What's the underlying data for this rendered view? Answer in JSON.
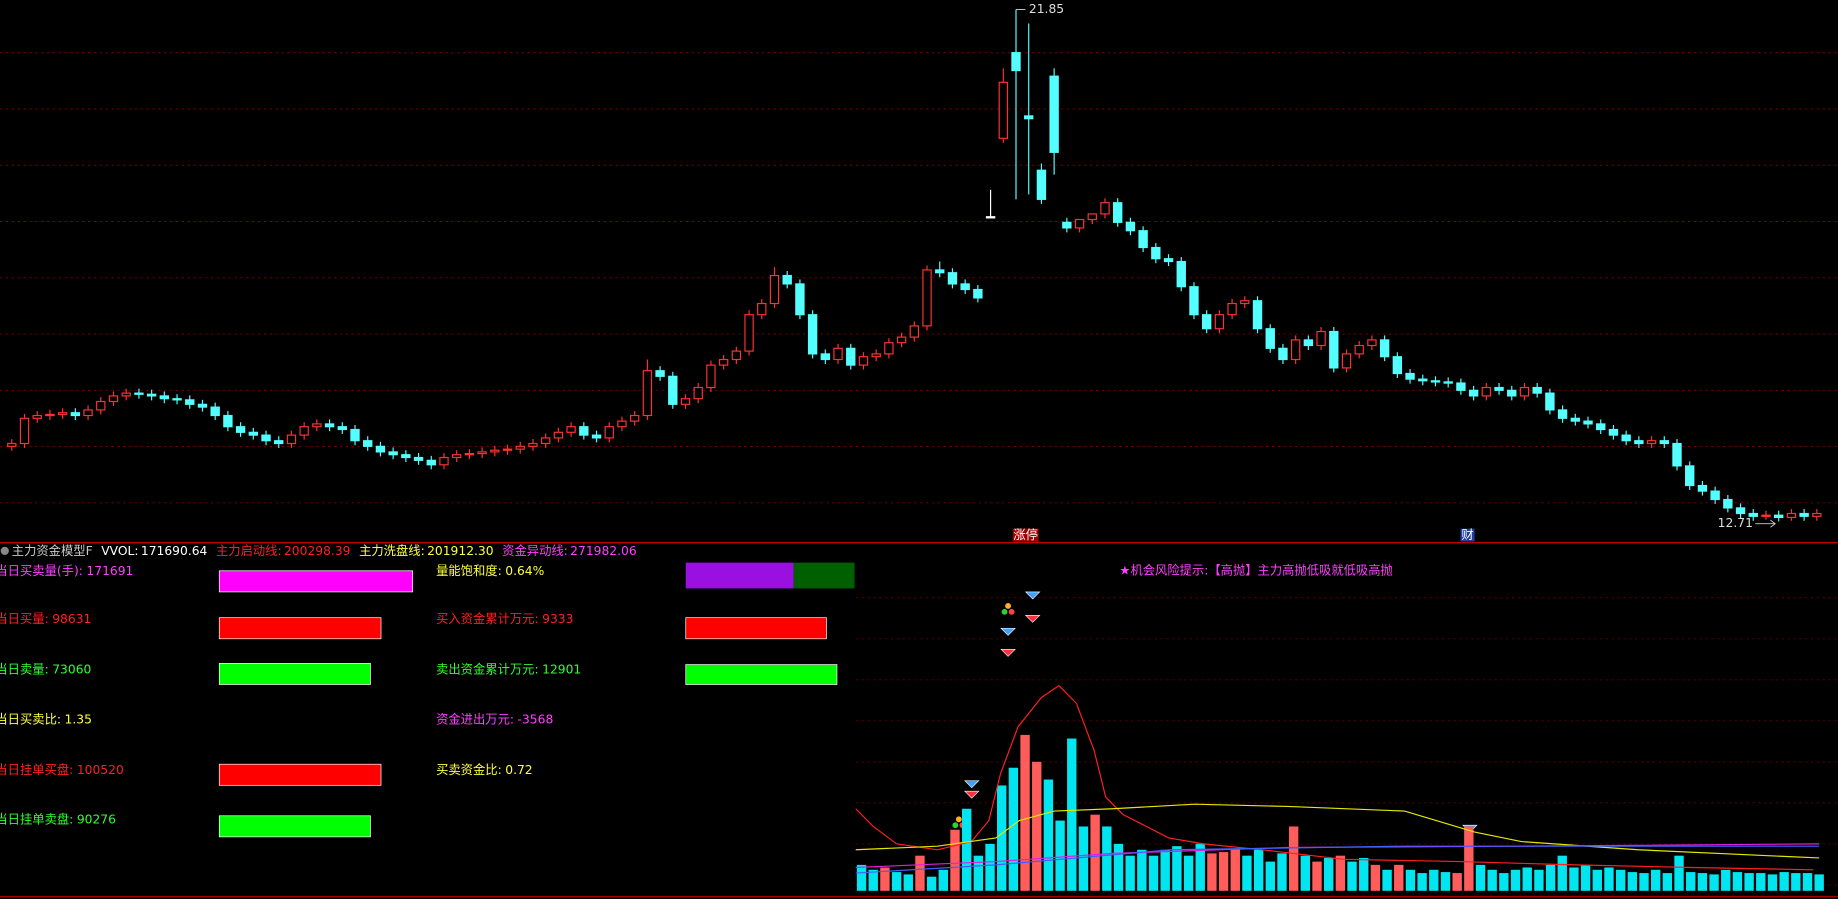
{
  "chart_data": [
    {
      "type": "candlestick",
      "ylim": [
        12.35,
        22.02
      ],
      "grid": true,
      "up_color": "#ff3232",
      "down_color": "#54ffff",
      "doji_color": "#ffffff",
      "open": [
        14.05,
        14.1,
        14.55,
        14.6,
        14.62,
        14.65,
        14.6,
        14.7,
        14.85,
        14.95,
        15.0,
        14.98,
        14.95,
        14.9,
        14.88,
        14.8,
        14.75,
        14.6,
        14.4,
        14.3,
        14.25,
        14.15,
        14.1,
        14.25,
        14.4,
        14.45,
        14.4,
        14.35,
        14.15,
        14.05,
        13.95,
        13.9,
        13.85,
        13.8,
        13.72,
        13.85,
        13.9,
        13.92,
        13.95,
        13.98,
        14.0,
        14.05,
        14.1,
        14.2,
        14.3,
        14.4,
        14.25,
        14.2,
        14.4,
        14.5,
        14.6,
        15.4,
        15.3,
        14.8,
        14.9,
        15.1,
        15.5,
        15.6,
        15.75,
        16.4,
        16.6,
        17.1,
        16.95,
        16.4,
        15.7,
        15.6,
        15.8,
        15.5,
        15.65,
        15.7,
        15.9,
        16.0,
        16.2,
        17.2,
        17.15,
        16.95,
        16.85,
        18.15,
        19.55,
        21.08,
        19.95,
        18.98,
        20.66,
        18.05,
        17.95,
        18.1,
        18.2,
        18.4,
        18.05,
        17.9,
        17.6,
        17.4,
        17.35,
        16.9,
        16.4,
        16.15,
        16.4,
        16.6,
        16.65,
        16.15,
        15.8,
        15.6,
        15.95,
        15.85,
        16.1,
        15.45,
        15.7,
        15.85,
        15.95,
        15.65,
        15.35,
        15.25,
        15.22,
        15.2,
        15.18,
        15.05,
        14.95,
        15.1,
        15.05,
        14.95,
        15.1,
        15.0,
        14.7,
        14.55,
        14.5,
        14.45,
        14.35,
        14.25,
        14.15,
        14.1,
        14.15,
        14.1,
        13.7,
        13.35,
        13.25,
        13.1,
        12.95,
        12.85,
        12.8,
        12.82,
        12.78,
        12.85,
        12.8
      ],
      "high": [
        14.18,
        14.63,
        14.68,
        14.7,
        14.73,
        14.73,
        14.78,
        14.93,
        15.03,
        15.08,
        15.08,
        15.06,
        15.03,
        14.98,
        14.96,
        14.88,
        14.83,
        14.68,
        14.48,
        14.38,
        14.33,
        14.23,
        14.33,
        14.48,
        14.53,
        14.53,
        14.48,
        14.43,
        14.23,
        14.13,
        14.03,
        13.98,
        13.93,
        13.88,
        13.93,
        13.98,
        14.0,
        14.03,
        14.06,
        14.08,
        14.13,
        14.18,
        14.28,
        14.38,
        14.48,
        14.48,
        14.33,
        14.48,
        14.58,
        14.68,
        15.6,
        15.48,
        15.38,
        14.98,
        15.18,
        15.58,
        15.68,
        15.83,
        16.48,
        16.68,
        17.25,
        17.18,
        17.03,
        16.48,
        15.78,
        15.88,
        15.88,
        15.73,
        15.78,
        15.98,
        16.08,
        16.28,
        17.28,
        17.35,
        17.23,
        17.03,
        16.93,
        18.63,
        20.8,
        21.85,
        21.6,
        19.1,
        20.8,
        18.13,
        18.03,
        18.18,
        18.48,
        18.48,
        18.13,
        17.98,
        17.68,
        17.48,
        17.43,
        16.98,
        16.48,
        16.48,
        16.68,
        16.73,
        16.73,
        16.23,
        15.88,
        16.03,
        16.03,
        16.18,
        16.18,
        15.78,
        15.93,
        16.03,
        16.03,
        15.73,
        15.43,
        15.33,
        15.3,
        15.28,
        15.26,
        15.13,
        15.18,
        15.18,
        15.13,
        15.18,
        15.18,
        15.08,
        14.78,
        14.63,
        14.58,
        14.53,
        14.43,
        14.33,
        14.23,
        14.23,
        14.23,
        14.18,
        13.78,
        13.43,
        13.33,
        13.18,
        13.03,
        12.93,
        12.9,
        12.9,
        12.93,
        12.93,
        12.93
      ],
      "low": [
        13.97,
        14.02,
        14.47,
        14.52,
        14.54,
        14.52,
        14.52,
        14.62,
        14.77,
        14.87,
        14.9,
        14.87,
        14.82,
        14.8,
        14.72,
        14.67,
        14.52,
        14.32,
        14.22,
        14.17,
        14.07,
        14.02,
        14.02,
        14.17,
        14.32,
        14.32,
        14.27,
        14.07,
        13.97,
        13.87,
        13.82,
        13.77,
        13.72,
        13.64,
        13.64,
        13.77,
        13.82,
        13.84,
        13.87,
        13.9,
        13.92,
        13.97,
        14.02,
        14.12,
        14.22,
        14.17,
        14.12,
        14.12,
        14.32,
        14.42,
        14.52,
        15.22,
        14.72,
        14.72,
        14.82,
        15.02,
        15.42,
        15.52,
        15.67,
        16.32,
        16.52,
        16.87,
        16.32,
        15.62,
        15.52,
        15.52,
        15.42,
        15.42,
        15.57,
        15.62,
        15.82,
        15.92,
        16.12,
        17.07,
        16.87,
        16.77,
        16.62,
        18.15,
        19.47,
        18.46,
        18.55,
        18.38,
        18.9,
        17.87,
        17.87,
        18.02,
        18.12,
        17.97,
        17.82,
        17.52,
        17.32,
        17.27,
        16.82,
        16.32,
        16.07,
        16.07,
        16.32,
        16.52,
        16.07,
        15.72,
        15.52,
        15.52,
        15.77,
        15.77,
        15.37,
        15.37,
        15.62,
        15.77,
        15.57,
        15.27,
        15.17,
        15.14,
        15.12,
        15.1,
        14.97,
        14.87,
        14.87,
        14.97,
        14.87,
        14.87,
        14.92,
        14.62,
        14.47,
        14.42,
        14.37,
        14.27,
        14.17,
        14.07,
        14.02,
        14.02,
        14.02,
        13.62,
        13.27,
        13.17,
        13.02,
        12.87,
        12.77,
        12.72,
        12.74,
        12.71,
        12.72,
        12.72,
        12.72
      ],
      "close": [
        14.1,
        14.55,
        14.6,
        14.62,
        14.65,
        14.6,
        14.7,
        14.85,
        14.95,
        15.0,
        14.98,
        14.95,
        14.9,
        14.88,
        14.8,
        14.75,
        14.6,
        14.4,
        14.3,
        14.25,
        14.15,
        14.1,
        14.25,
        14.4,
        14.45,
        14.4,
        14.35,
        14.15,
        14.05,
        13.95,
        13.9,
        13.85,
        13.8,
        13.72,
        13.85,
        13.9,
        13.92,
        13.95,
        13.98,
        14.0,
        14.05,
        14.1,
        14.2,
        14.3,
        14.4,
        14.25,
        14.2,
        14.4,
        14.5,
        14.6,
        15.4,
        15.3,
        14.8,
        14.9,
        15.1,
        15.5,
        15.6,
        15.75,
        16.4,
        16.6,
        17.1,
        16.95,
        16.4,
        15.7,
        15.6,
        15.8,
        15.5,
        15.65,
        15.7,
        15.9,
        16.0,
        16.2,
        17.2,
        17.15,
        16.95,
        16.85,
        16.7,
        18.15,
        20.55,
        20.76,
        19.9,
        18.46,
        19.3,
        17.95,
        18.1,
        18.2,
        18.4,
        18.05,
        17.9,
        17.6,
        17.4,
        17.35,
        16.9,
        16.4,
        16.15,
        16.4,
        16.6,
        16.65,
        16.15,
        15.8,
        15.6,
        15.95,
        15.85,
        16.1,
        15.45,
        15.7,
        15.85,
        15.95,
        15.65,
        15.35,
        15.25,
        15.22,
        15.2,
        15.18,
        15.05,
        14.95,
        15.1,
        15.05,
        14.95,
        15.1,
        15.0,
        14.7,
        14.55,
        14.5,
        14.45,
        14.35,
        14.25,
        14.15,
        14.1,
        14.15,
        14.1,
        13.7,
        13.35,
        13.25,
        13.1,
        12.95,
        12.85,
        12.8,
        12.82,
        12.78,
        12.85,
        12.8,
        12.85
      ]
    },
    {
      "type": "bar",
      "ylim": [
        0,
        100
      ],
      "grid": true,
      "up_color": "#ff5c5c",
      "down_color": "#00e5f0",
      "values": [
        7.9,
        6.4,
        7.1,
        5.7,
        5,
        10.7,
        4.3,
        6.4,
        18.6,
        25,
        10.7,
        14.3,
        32.1,
        37.5,
        47.5,
        39.3,
        33.9,
        21.4,
        46.4,
        19.6,
        23.2,
        19.6,
        14.3,
        10.7,
        12.5,
        10.7,
        12.5,
        13.6,
        10.7,
        14.3,
        11.4,
        11.8,
        12.9,
        10.7,
        12.5,
        8.9,
        11.4,
        19.6,
        10.7,
        8.9,
        10,
        10.7,
        8.9,
        10,
        7.9,
        6.4,
        7.9,
        6.4,
        5.4,
        6.4,
        5.7,
        5.4,
        19.6,
        7.9,
        6.4,
        5.4,
        6.4,
        7.1,
        6.4,
        7.9,
        10.7,
        7.1,
        7.9,
        6.4,
        7.1,
        6.4,
        5.7,
        5.4,
        6.4,
        5.4,
        10.7,
        5.7,
        5.4,
        5,
        6.4,
        5.7,
        5.4,
        5.4,
        5,
        5.7,
        5.4,
        5.4,
        5
      ],
      "up": [
        false,
        false,
        true,
        false,
        false,
        true,
        false,
        false,
        true,
        false,
        false,
        false,
        false,
        false,
        true,
        true,
        false,
        false,
        false,
        false,
        true,
        false,
        false,
        false,
        false,
        false,
        false,
        false,
        false,
        false,
        true,
        true,
        true,
        false,
        false,
        false,
        false,
        true,
        false,
        true,
        false,
        true,
        false,
        false,
        true,
        false,
        true,
        false,
        false,
        false,
        false,
        true,
        true,
        false,
        false,
        false,
        false,
        false,
        false,
        false,
        false,
        false,
        false,
        false,
        false,
        false,
        false,
        false,
        false,
        false,
        false,
        false,
        false,
        false,
        false,
        false,
        false,
        false,
        false,
        false,
        false,
        false,
        false
      ],
      "series": [
        {
          "color": "#ff2020",
          "x": [
            -0.5,
            1,
            3,
            6.5,
            9.4,
            10.9,
            11.9,
            13.4,
            15.4,
            16.9,
            18.4,
            19.9,
            20.9,
            22.4,
            24.4,
            26.3,
            29.3,
            34.3,
            41.3,
            51.2,
            61.1,
            71.1,
            81.5
          ],
          "values": [
            25,
            19.6,
            14.3,
            12.5,
            15,
            21.4,
            35.7,
            50,
            58.9,
            62.5,
            57.1,
            42.9,
            28.6,
            23.2,
            19.6,
            16.1,
            14.3,
            12.5,
            9.6,
            8.9,
            7.9,
            7.1,
            6.4
          ]
        },
        {
          "color": "#e6e600",
          "x": [
            -0.5,
            6.5,
            11.5,
            13.5,
            16.5,
            21.5,
            28.5,
            36.5,
            46.5,
            52.5,
            56.5,
            66.5,
            82
          ],
          "values": [
            12.5,
            13.6,
            16.1,
            21.4,
            24.3,
            25,
            26.4,
            25.7,
            24.3,
            17.9,
            15,
            12.5,
            10
          ]
        },
        {
          "color": "#e020e0",
          "x": [
            -0.5,
            11.5,
            21.5,
            36.5,
            56.5,
            82
          ],
          "values": [
            7.1,
            8.9,
            11.4,
            13.2,
            13.6,
            14.3
          ]
        },
        {
          "color": "#4060ff",
          "x": [
            -0.5,
            11.5,
            26.5,
            46.5,
            82
          ],
          "values": [
            5.4,
            7.9,
            12.5,
            13.6,
            13.6
          ]
        }
      ]
    }
  ],
  "events": [
    "涨停",
    "财"
  ],
  "header": {
    "title": "主力资金模型F",
    "items": [
      {
        "label": "VVOL:",
        "value": "171690.64"
      },
      {
        "label": "主力启动线:",
        "value": "200298.39"
      },
      {
        "label": "主力洗盘线:",
        "value": "201912.30"
      },
      {
        "label": "资金异动线:",
        "value": "271982.06"
      }
    ]
  },
  "hint": "★机会风险提示:【高抛】主力高抛低吸就低吸高抛",
  "left_rows": [
    {
      "label": "当日买卖量(手):",
      "value": 171691
    },
    {
      "label": "当日买量:",
      "value": 98631
    },
    {
      "label": "当日卖量:",
      "value": 73060
    },
    {
      "label": "当日买卖比:",
      "value": 1.35
    },
    {
      "label": "当日挂单买盘:",
      "value": 100520
    },
    {
      "label": "当日挂单卖盘:",
      "value": 90276
    }
  ],
  "right_rows": [
    {
      "label": "量能饱和度:",
      "value": "0.64%"
    },
    {
      "label": "买入资金累计万元:",
      "value": 9333
    },
    {
      "label": "卖出资金累计万元:",
      "value": 12901
    },
    {
      "label": "资金进出万元:",
      "value": -3568
    },
    {
      "label": "买卖资金比:",
      "value": 0.72
    }
  ]
}
